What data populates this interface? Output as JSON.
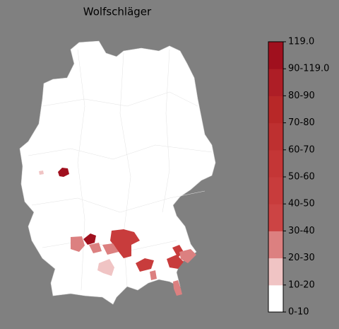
{
  "title": "Wolfschläger",
  "legend": {
    "labels": [
      "0-10",
      "10-20",
      "20-30",
      "30-40",
      "40-50",
      "50-60",
      "60-70",
      "70-80",
      "80-90",
      "90-119.0",
      "119.0"
    ]
  }
}
